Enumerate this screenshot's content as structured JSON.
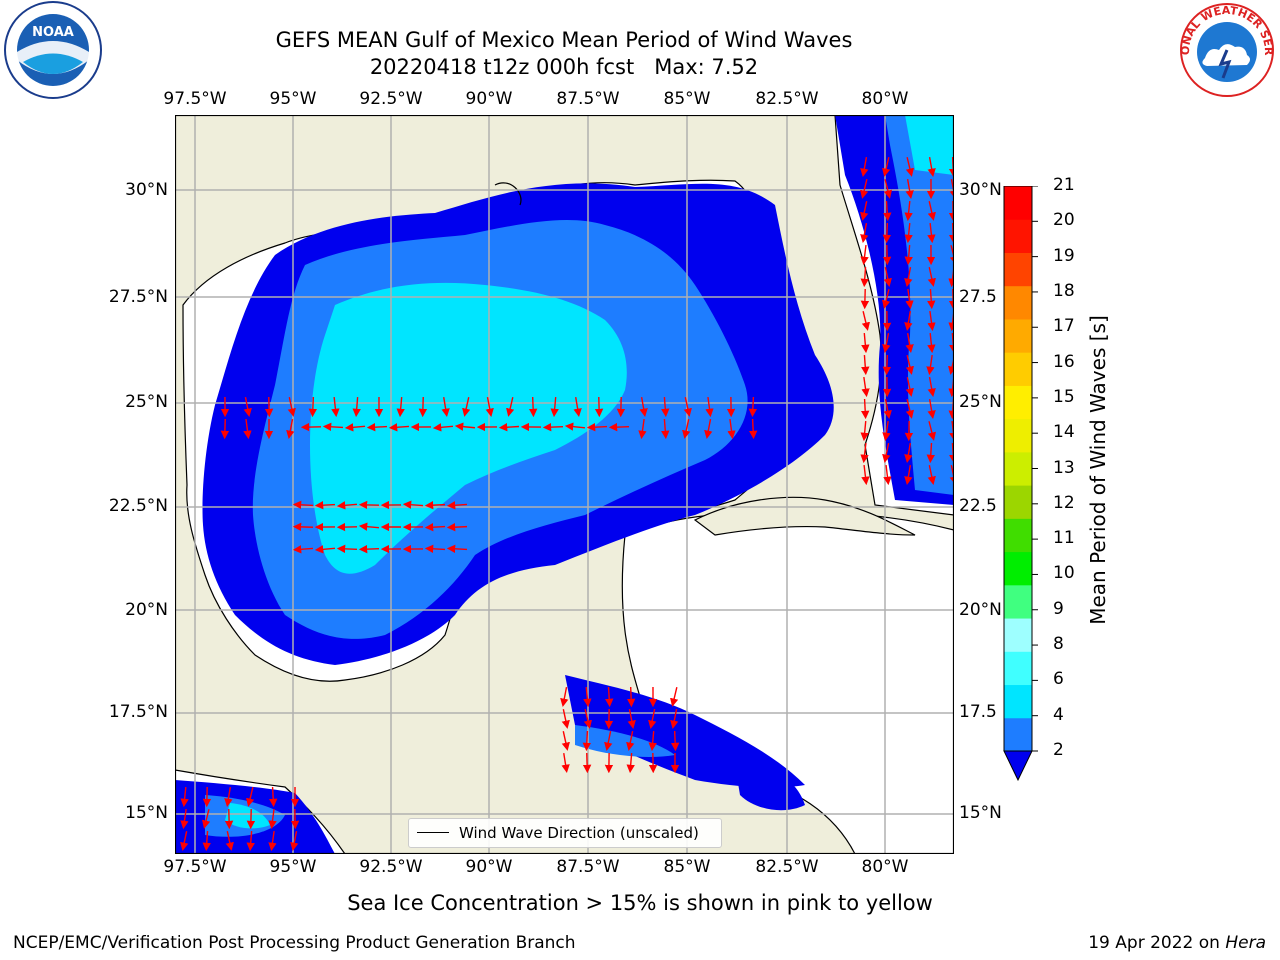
{
  "title": {
    "line1": "GEFS MEAN Gulf of Mexico Mean Period of Wind Waves",
    "line2": "20220418 t12z 000h fcst   Max: 7.52"
  },
  "logos": {
    "left": {
      "name": "noaa-logo",
      "text": "NOAA"
    },
    "right": {
      "name": "nws-logo",
      "text": "NATIONAL WEATHER SERVICE"
    }
  },
  "map": {
    "lon_labels": [
      "97.5°W",
      "95°W",
      "92.5°W",
      "90°W",
      "87.5°W",
      "85°W",
      "82.5°W",
      "80°W"
    ],
    "lat_labels_left": [
      "30°N",
      "27.5°N",
      "25°N",
      "22.5°N",
      "20°N",
      "17.5°N",
      "15°N"
    ],
    "lat_labels_right": [
      "30°N",
      "27.5",
      "25°N",
      "22.5",
      "20°N",
      "17.5",
      "15°N"
    ],
    "colors": {
      "land": "#efeedb",
      "ocean": "#ffffff",
      "grid": "#b0b0b0",
      "arrow": "#ff0000"
    },
    "legend": "Wind Wave Direction (unscaled)"
  },
  "colorbar": {
    "title": "Mean Period of Wind Waves [s]",
    "ticks": [
      "2",
      "4",
      "6",
      "8",
      "9",
      "10",
      "11",
      "12",
      "13",
      "14",
      "15",
      "16",
      "17",
      "18",
      "19",
      "20",
      "21"
    ],
    "colors": [
      "#0000ee",
      "#1e7dff",
      "#00e5ff",
      "#40ffff",
      "#9effff",
      "#40ff80",
      "#00ee00",
      "#40dd00",
      "#9cd600",
      "#ccee00",
      "#eeee00",
      "#ffee00",
      "#ffcc00",
      "#ffaa00",
      "#ff8800",
      "#ff4400",
      "#ff1400",
      "#ff0000"
    ]
  },
  "footer": {
    "note": "Sea Ice Concentration > 15% is shown in pink to yellow",
    "left": "NCEP/EMC/Verification Post Processing Product Generation Branch",
    "right_prefix": "19 Apr 2022 on ",
    "right_italic": "Hera"
  }
}
